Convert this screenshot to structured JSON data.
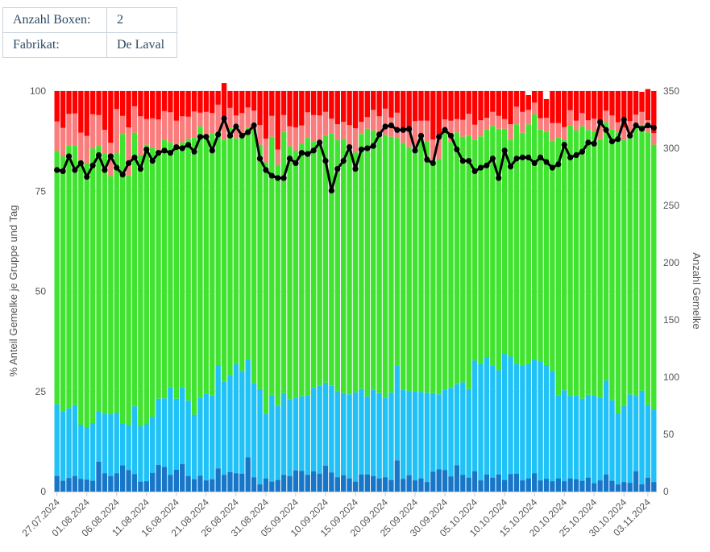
{
  "info": {
    "rows": [
      {
        "label": "Anzahl Boxen:",
        "value": "2"
      },
      {
        "label": "Fabrikat:",
        "value": "De Laval"
      }
    ]
  },
  "colors": {
    "dark_blue": "#1776c8",
    "light_blue": "#1fc1f6",
    "green": "#40e430",
    "pink": "#fb7c7c",
    "red": "#ff0000",
    "line": "#000000",
    "grid": "#e6e6e6",
    "axis_text": "#555555"
  },
  "chart_data": {
    "type": "bar",
    "stacked": true,
    "percent_stacked": true,
    "ylabel": "% Anteil Gemelke je Gruppe und Tag",
    "y2label": "Anzahl Gemelke",
    "ylim": [
      0,
      100
    ],
    "y2lim": [
      0,
      350
    ],
    "yticks": [
      0,
      25,
      50,
      75,
      100
    ],
    "y2ticks": [
      0,
      50,
      100,
      150,
      200,
      250,
      300,
      350
    ],
    "xtick_labels": [
      "27.07.2024",
      "01.08.2024",
      "06.08.2024",
      "11.08.2024",
      "16.08.2024",
      "21.08.2024",
      "26.08.2024",
      "31.08.2024",
      "05.09.2024",
      "10.09.2024",
      "15.09.2024",
      "20.09.2024",
      "25.09.2024",
      "30.09.2024",
      "05.10.2024",
      "10.10.2024",
      "15.10.2024",
      "20.10.2024",
      "25.10.2024",
      "30.10.2024",
      "03.11.2024"
    ],
    "xtick_index": [
      0,
      5,
      10,
      15,
      20,
      25,
      30,
      35,
      40,
      45,
      50,
      55,
      60,
      65,
      70,
      75,
      80,
      85,
      90,
      95,
      99
    ],
    "x_start": "27.07.2024",
    "days": 101,
    "grid": true,
    "legend": "none",
    "dark_blue": [
      3.9,
      2.7,
      3.4,
      3.9,
      3.2,
      3,
      2.7,
      7.5,
      4.6,
      3.9,
      4.6,
      6.6,
      5.4,
      4.4,
      2.5,
      2.6,
      4.7,
      6.7,
      6.2,
      4.2,
      5.5,
      6.9,
      3.9,
      3.1,
      4,
      2.8,
      3.1,
      5.8,
      4.2,
      4.9,
      4.6,
      4.5,
      8.6,
      3.6,
      1.8,
      3.3,
      2.5,
      2.9,
      4.2,
      3.9,
      5.3,
      5.2,
      4.2,
      5.1,
      4.5,
      6.5,
      4.8,
      3.6,
      4.1,
      3.3,
      2.5,
      4.3,
      4.3,
      3.9,
      3.3,
      3.6,
      2.9,
      7.8,
      3.2,
      4.1,
      2.8,
      3.3,
      2.4,
      5,
      5.6,
      5.4,
      3.8,
      6.6,
      4.2,
      3.5,
      5.1,
      2.8,
      4.3,
      3.5,
      4.3,
      2.9,
      4.4,
      4.5,
      2.8,
      3.3,
      4.6,
      2.8,
      3.2,
      2.6,
      3.3,
      2.6,
      3.3,
      3.1,
      2.7,
      3.5,
      2.1,
      2.8,
      4.3,
      2.7,
      1.8,
      2.4,
      2.2,
      5.1,
      1.8,
      3.5,
      2.4
    ],
    "light_blue": [
      17.9,
      17.3,
      17.4,
      17.7,
      13.5,
      13.1,
      14.4,
      12.6,
      14.8,
      15.4,
      15.1,
      10.4,
      11.2,
      16.9,
      13.8,
      14.2,
      14,
      16.5,
      17.1,
      21.9,
      17.7,
      19.2,
      18.8,
      16.1,
      19.5,
      21.7,
      20.9,
      25.8,
      23.2,
      24.2,
      27.2,
      25.6,
      24.4,
      23.5,
      23.8,
      16.1,
      21.6,
      18.5,
      20.4,
      19.1,
      18.2,
      18.6,
      19.9,
      20.8,
      21.9,
      20.7,
      21.6,
      21.4,
      20.5,
      21,
      22.3,
      21.3,
      19.5,
      21.5,
      21.3,
      19.8,
      21.8,
      23.6,
      22.3,
      21,
      22.3,
      21.6,
      22.3,
      19.6,
      18.7,
      20.1,
      22.1,
      20.2,
      23.1,
      22.1,
      27.6,
      29,
      29.1,
      27.9,
      26,
      31.5,
      29.3,
      27.3,
      28.7,
      28.5,
      28.4,
      29.6,
      28.4,
      27.5,
      20.7,
      22.7,
      20.6,
      20.9,
      20.5,
      20.7,
      22,
      20.7,
      23.4,
      20.1,
      17.8,
      19.1,
      22.1,
      18.8,
      23.4,
      18.1,
      18.1
    ],
    "green": [
      63.3,
      63.7,
      65.7,
      64.8,
      66,
      65.9,
      68.6,
      66.4,
      65,
      59.5,
      64.9,
      72.3,
      62.3,
      68.3,
      67.6,
      69.8,
      67.2,
      62,
      64.6,
      61.1,
      62.3,
      61.1,
      65.4,
      69.3,
      67.7,
      64.6,
      65.4,
      58.4,
      60.5,
      61.7,
      56.4,
      58.7,
      57.9,
      63.2,
      61,
      62.8,
      64.5,
      60.2,
      65.2,
      63.2,
      61.6,
      63.1,
      64.2,
      61.5,
      61,
      61.7,
      63,
      62.8,
      63.5,
      60.8,
      59.9,
      63.7,
      66.8,
      64.8,
      63.8,
      65.7,
      63.9,
      56.9,
      61.6,
      60.7,
      61,
      63.4,
      62.7,
      58.1,
      58.8,
      64.4,
      61.4,
      62.9,
      61.3,
      63.2,
      55.2,
      56.9,
      57,
      59.9,
      60.3,
      56.2,
      54.2,
      59.9,
      58.1,
      59.9,
      61.2,
      58,
      58.2,
      57.5,
      64.5,
      62.5,
      67.5,
      66.2,
      68,
      66.1,
      65.7,
      64.5,
      64.5,
      67.7,
      70.1,
      66.3,
      64.3,
      67.4,
      66.4,
      68.1,
      66.1
    ],
    "pink": [
      7.3,
      7.1,
      7.8,
      8,
      6.9,
      6.8,
      8.5,
      7.5,
      5.9,
      8.3,
      10.9,
      4.5,
      12,
      6.6,
      9.8,
      6.4,
      7.3,
      7.7,
      7.1,
      7.5,
      7.1,
      6.5,
      5.5,
      6.4,
      3.4,
      5.7,
      5.1,
      6.6,
      4.2,
      5,
      5.7,
      5.7,
      5,
      4.8,
      4.9,
      5.9,
      5.2,
      3.8,
      4.2,
      5,
      5.8,
      4.5,
      6.4,
      6.6,
      6.5,
      5.9,
      3.7,
      3.9,
      4.2,
      6.4,
      6,
      3,
      2.9,
      5.1,
      5.3,
      6.5,
      4.8,
      6.3,
      3.6,
      4,
      6.4,
      4.3,
      5.2,
      5.2,
      5.5,
      3,
      5.3,
      3.3,
      4.2,
      5.5,
      3.7,
      4,
      2.9,
      3.5,
      3.2,
      2.4,
      3.8,
      4.4,
      5.2,
      3.6,
      2.9,
      2.8,
      3.5,
      4.4,
      3.5,
      3.2,
      3.8,
      2.4,
      3.3,
      2.4,
      3.3,
      3.8,
      2.9,
      3.4,
      2.5,
      3.1,
      3.9,
      2.8,
      3.2,
      3,
      2.9
    ],
    "red": [
      7.6,
      9.2,
      5.7,
      5.6,
      10.4,
      11.2,
      5.8,
      6,
      9.7,
      12.9,
      4.5,
      6.2,
      9.1,
      3.8,
      6.3,
      7,
      6.8,
      7.1,
      5,
      5.3,
      7.4,
      6.3,
      6.4,
      5.1,
      5.4,
      5.2,
      5.5,
      3.4,
      9.9,
      4.2,
      6.1,
      5.5,
      4.1,
      4.9,
      8.5,
      11.9,
      6.2,
      14.6,
      6,
      8.8,
      9.1,
      8.6,
      5.3,
      6,
      6.1,
      5.2,
      6.9,
      8.3,
      7.7,
      8.5,
      9.3,
      7.7,
      6.5,
      4.7,
      6.3,
      4.4,
      6.6,
      5.4,
      9.3,
      10.2,
      7.5,
      7.4,
      7.4,
      12.1,
      11.4,
      7.1,
      7.4,
      7,
      7.2,
      5.7,
      8.4,
      7.3,
      6.7,
      5.2,
      6.2,
      7,
      8.3,
      3.9,
      5.2,
      3.7,
      2.9,
      6.8,
      4.7,
      8,
      8,
      9,
      4.8,
      7.4,
      5.5,
      7.3,
      6.9,
      8.2,
      4.9,
      6.1,
      7.8,
      9.1,
      7.5,
      5.9,
      5,
      7.8,
      10.5
    ],
    "line": [
      281,
      280,
      293,
      281,
      287,
      275,
      285,
      294,
      281,
      293,
      283,
      277,
      287,
      292,
      282,
      299,
      289,
      296,
      298,
      296,
      301,
      300,
      303,
      297,
      310,
      310,
      298,
      312,
      326,
      311,
      319,
      311,
      314,
      320,
      291,
      281,
      276,
      274,
      274,
      291,
      287,
      296,
      295,
      298,
      305,
      289,
      263,
      282,
      289,
      301,
      282,
      299,
      300,
      302,
      312,
      319,
      320,
      316,
      316,
      317,
      298,
      311,
      290,
      287,
      310,
      316,
      311,
      299,
      289,
      289,
      280,
      283,
      285,
      291,
      274,
      298,
      284,
      291,
      292,
      292,
      287,
      292,
      288,
      283,
      286,
      303,
      292,
      294,
      297,
      305,
      304,
      323,
      316,
      306,
      308,
      325,
      311,
      320,
      317,
      320,
      318
    ]
  }
}
